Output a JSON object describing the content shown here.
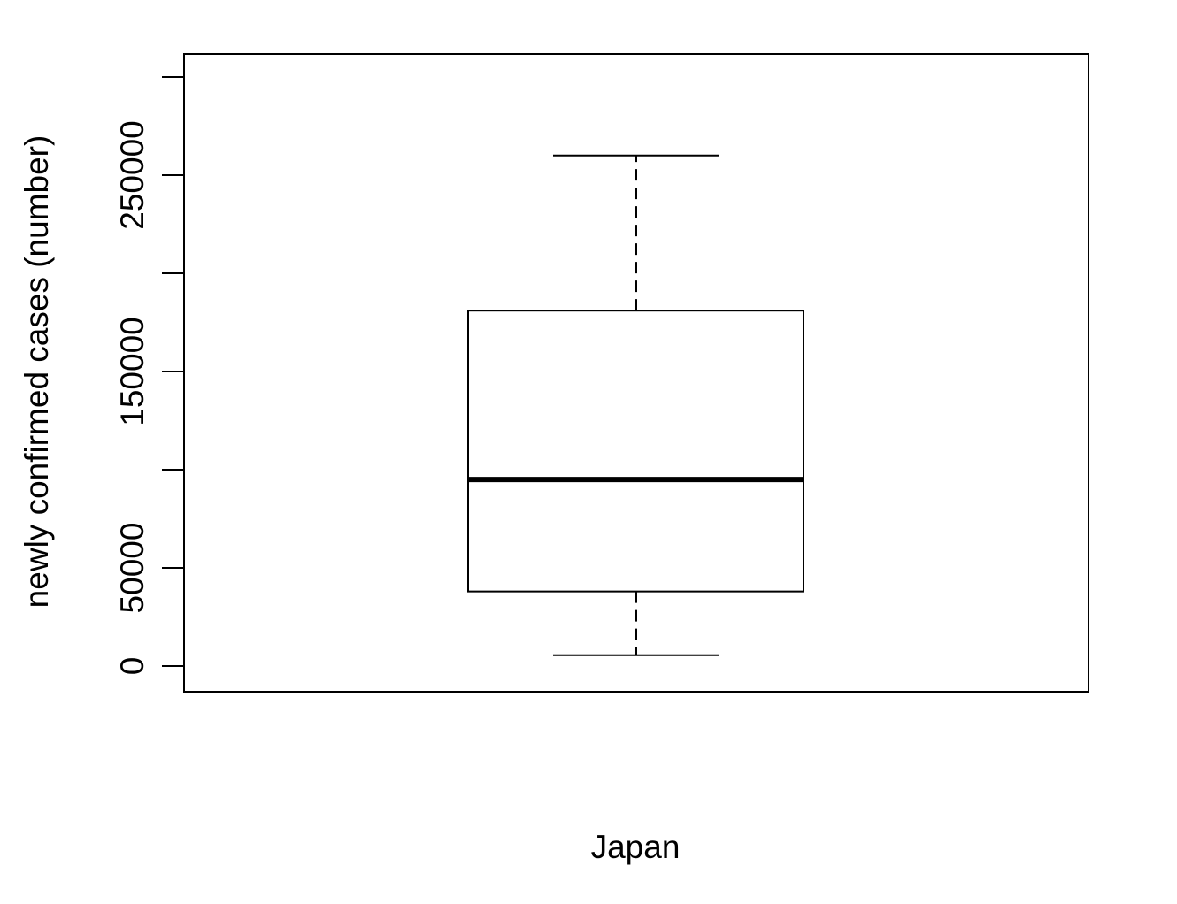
{
  "chart_data": {
    "type": "boxplot",
    "title": "",
    "xlabel": "Japan",
    "ylabel": "newly confirmed cases (number)",
    "ylim": [
      0,
      300000
    ],
    "y_ticks": [
      0,
      50000,
      100000,
      150000,
      200000,
      250000,
      300000
    ],
    "y_tick_labels": [
      "0",
      "50000",
      "",
      "150000",
      "",
      "250000",
      ""
    ],
    "series": [
      {
        "category": "Japan",
        "whisker_low": 5500,
        "q1": 38000,
        "median": 95000,
        "q3": 181000,
        "whisker_high": 260000
      }
    ],
    "grid": false,
    "legend": "none"
  }
}
